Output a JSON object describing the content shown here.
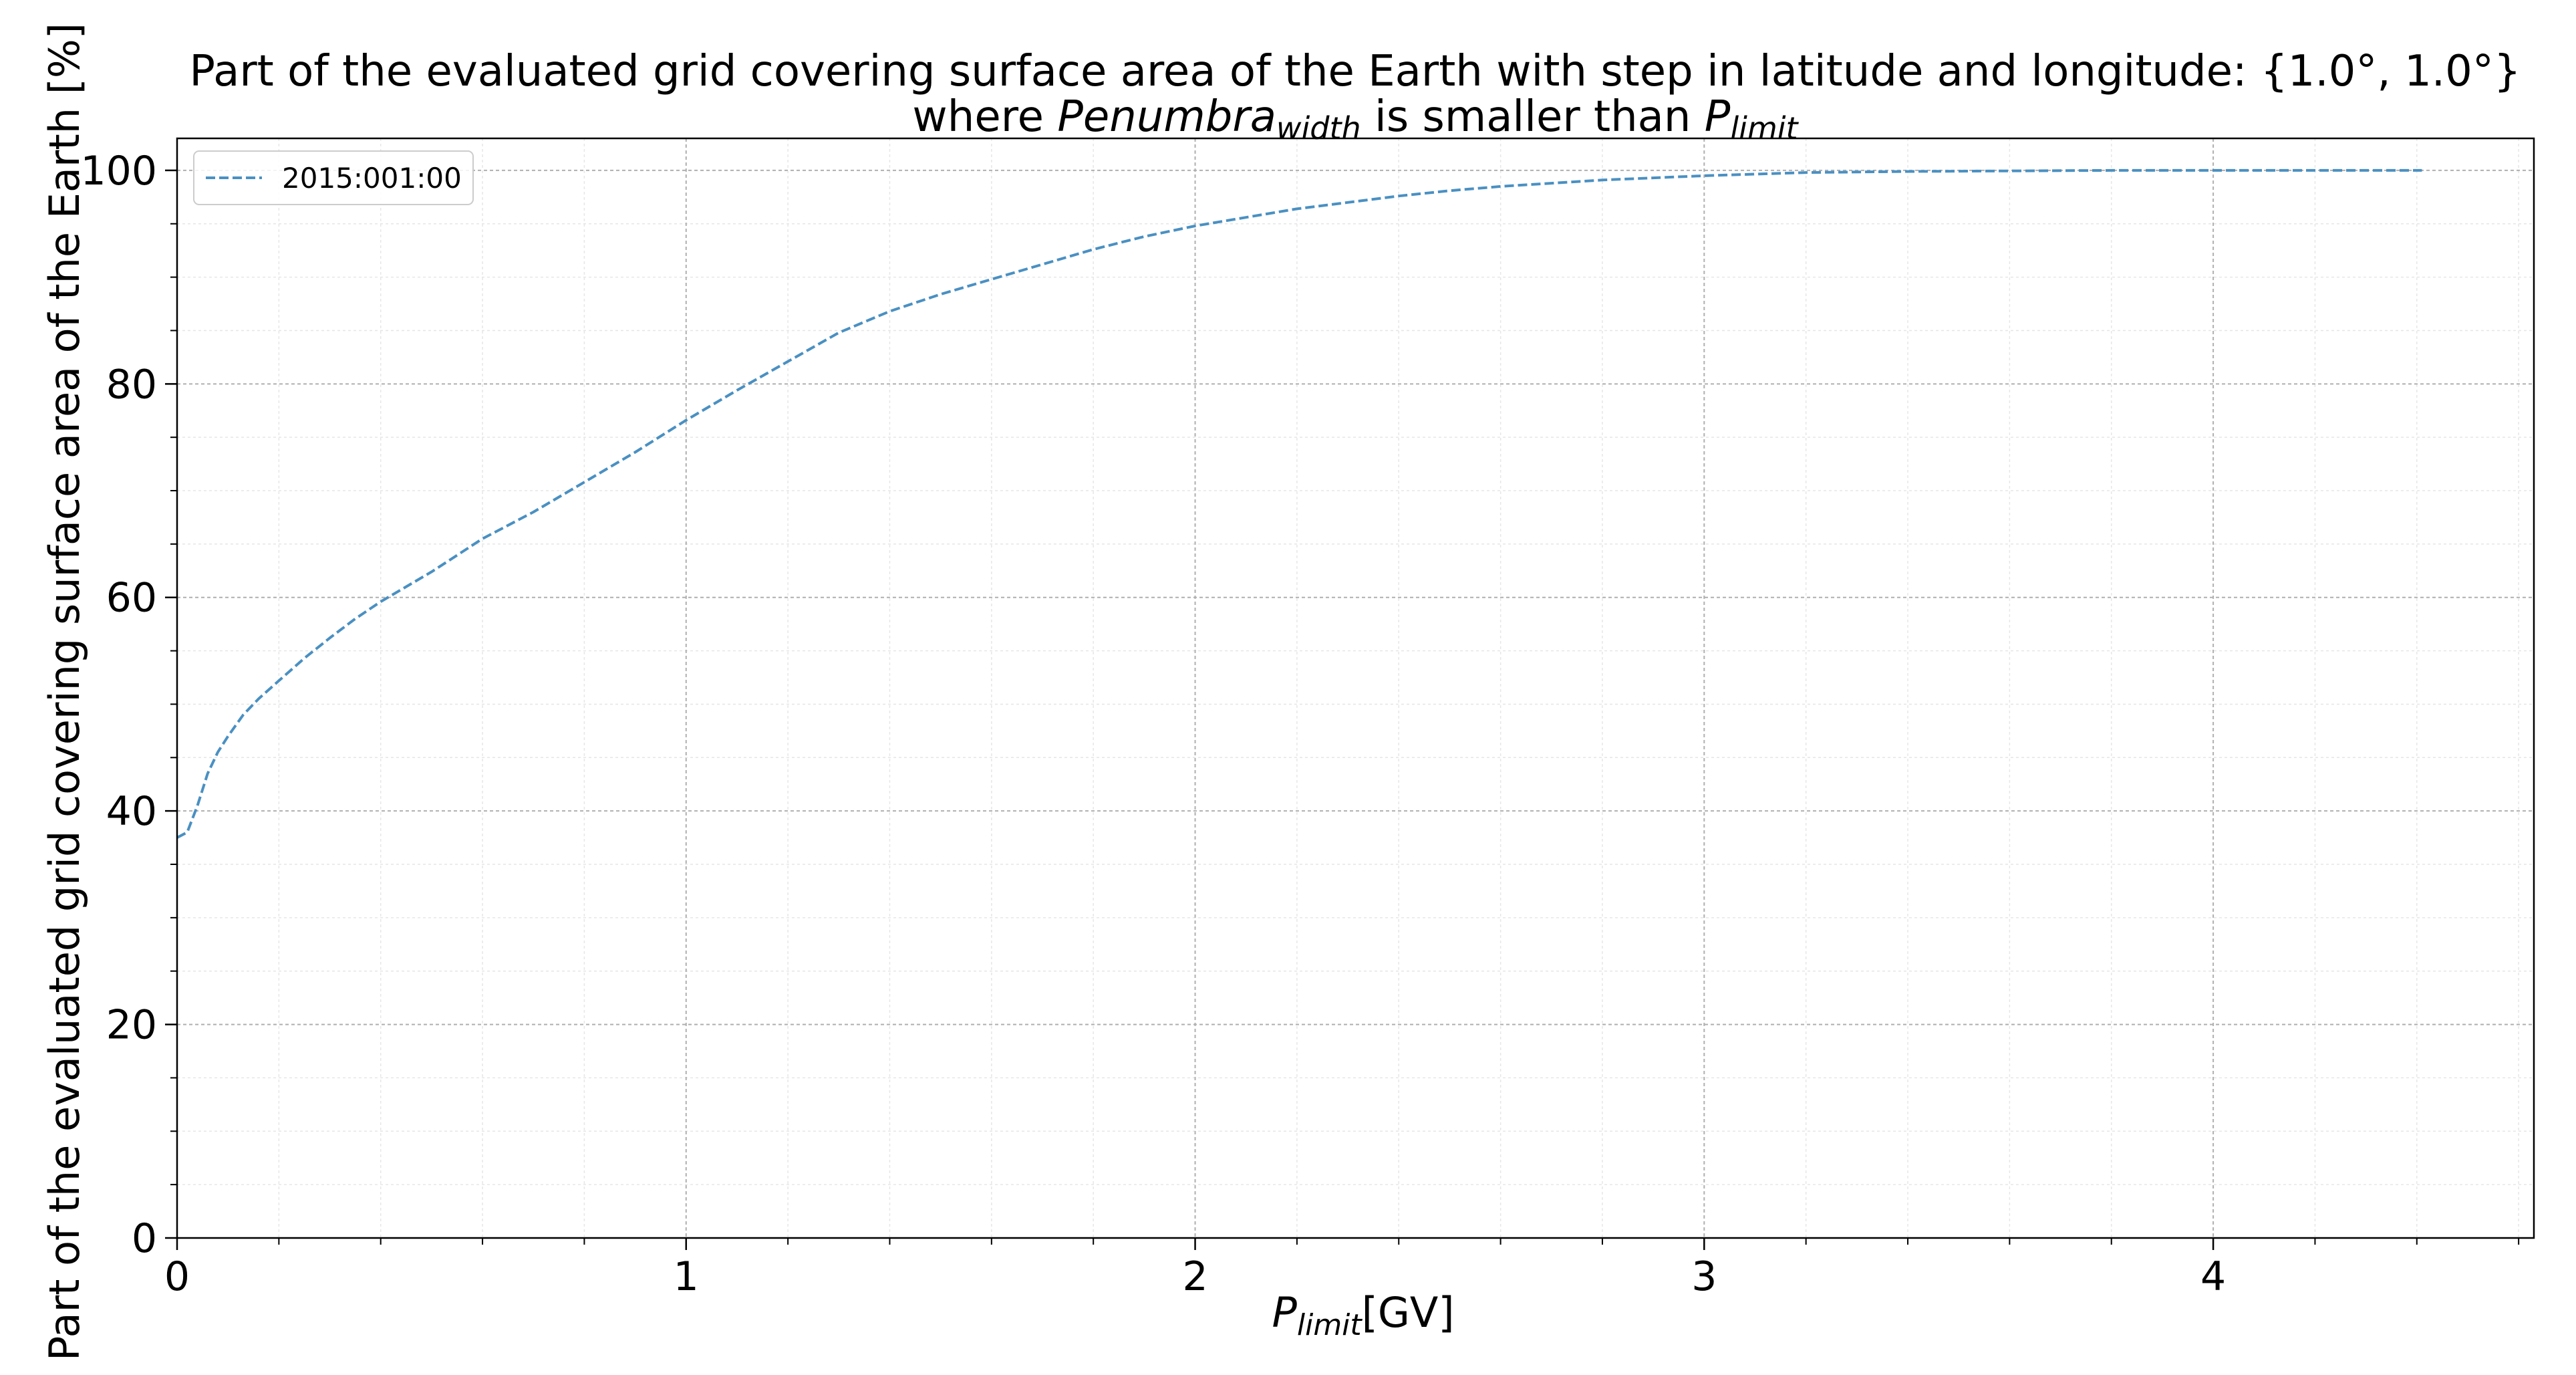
{
  "chart_data": {
    "type": "line",
    "title": {
      "line1": "Part of the evaluated grid covering surface area of the Earth with step in latitude and longitude: {1.0°, 1.0°}",
      "line2_prefix": "where ",
      "line2_var": "Penumbra",
      "line2_var_sub": "width",
      "line2_middle": " is smaller than ",
      "line2_limit": "P",
      "line2_limit_sub": "limit"
    },
    "xlabel": {
      "var": "P",
      "sub": "limit",
      "unit": "[GV]"
    },
    "ylabel": "Part of the evaluated grid covering surface area of the Earth  [%]",
    "xlim": [
      0,
      4.63
    ],
    "ylim": [
      0,
      103
    ],
    "xticks": [
      0,
      1,
      2,
      3,
      4
    ],
    "xtick_labels": [
      "0",
      "1",
      "2",
      "3",
      "4"
    ],
    "yticks": [
      0,
      20,
      40,
      60,
      80,
      100
    ],
    "ytick_labels": [
      "0",
      "20",
      "40",
      "60",
      "80",
      "100"
    ],
    "grid": true,
    "minor_grid": true,
    "legend_position": "top-left",
    "series": [
      {
        "name": "2015:001:00",
        "color": "#4a90c2",
        "line_style": "dashed",
        "x": [
          0,
          0.02,
          0.04,
          0.06,
          0.08,
          0.1,
          0.13,
          0.16,
          0.2,
          0.25,
          0.3,
          0.35,
          0.4,
          0.5,
          0.6,
          0.7,
          0.8,
          0.9,
          1.0,
          1.1,
          1.2,
          1.3,
          1.4,
          1.5,
          1.6,
          1.7,
          1.8,
          1.9,
          2.0,
          2.1,
          2.2,
          2.3,
          2.4,
          2.5,
          2.6,
          2.7,
          2.8,
          2.9,
          3.0,
          3.2,
          3.4,
          3.6,
          3.8,
          4.0,
          4.2,
          4.41
        ],
        "y": [
          37.5,
          38.0,
          40.5,
          43.5,
          45.5,
          47.0,
          49.0,
          50.5,
          52.2,
          54.3,
          56.2,
          58.0,
          59.6,
          62.4,
          65.5,
          68.0,
          70.8,
          73.6,
          76.6,
          79.4,
          82.1,
          84.8,
          86.8,
          88.4,
          89.8,
          91.2,
          92.6,
          93.8,
          94.8,
          95.6,
          96.4,
          97.0,
          97.6,
          98.1,
          98.5,
          98.8,
          99.1,
          99.3,
          99.5,
          99.8,
          99.9,
          99.95,
          100.0,
          100.0,
          100.0,
          100.0
        ]
      }
    ]
  }
}
